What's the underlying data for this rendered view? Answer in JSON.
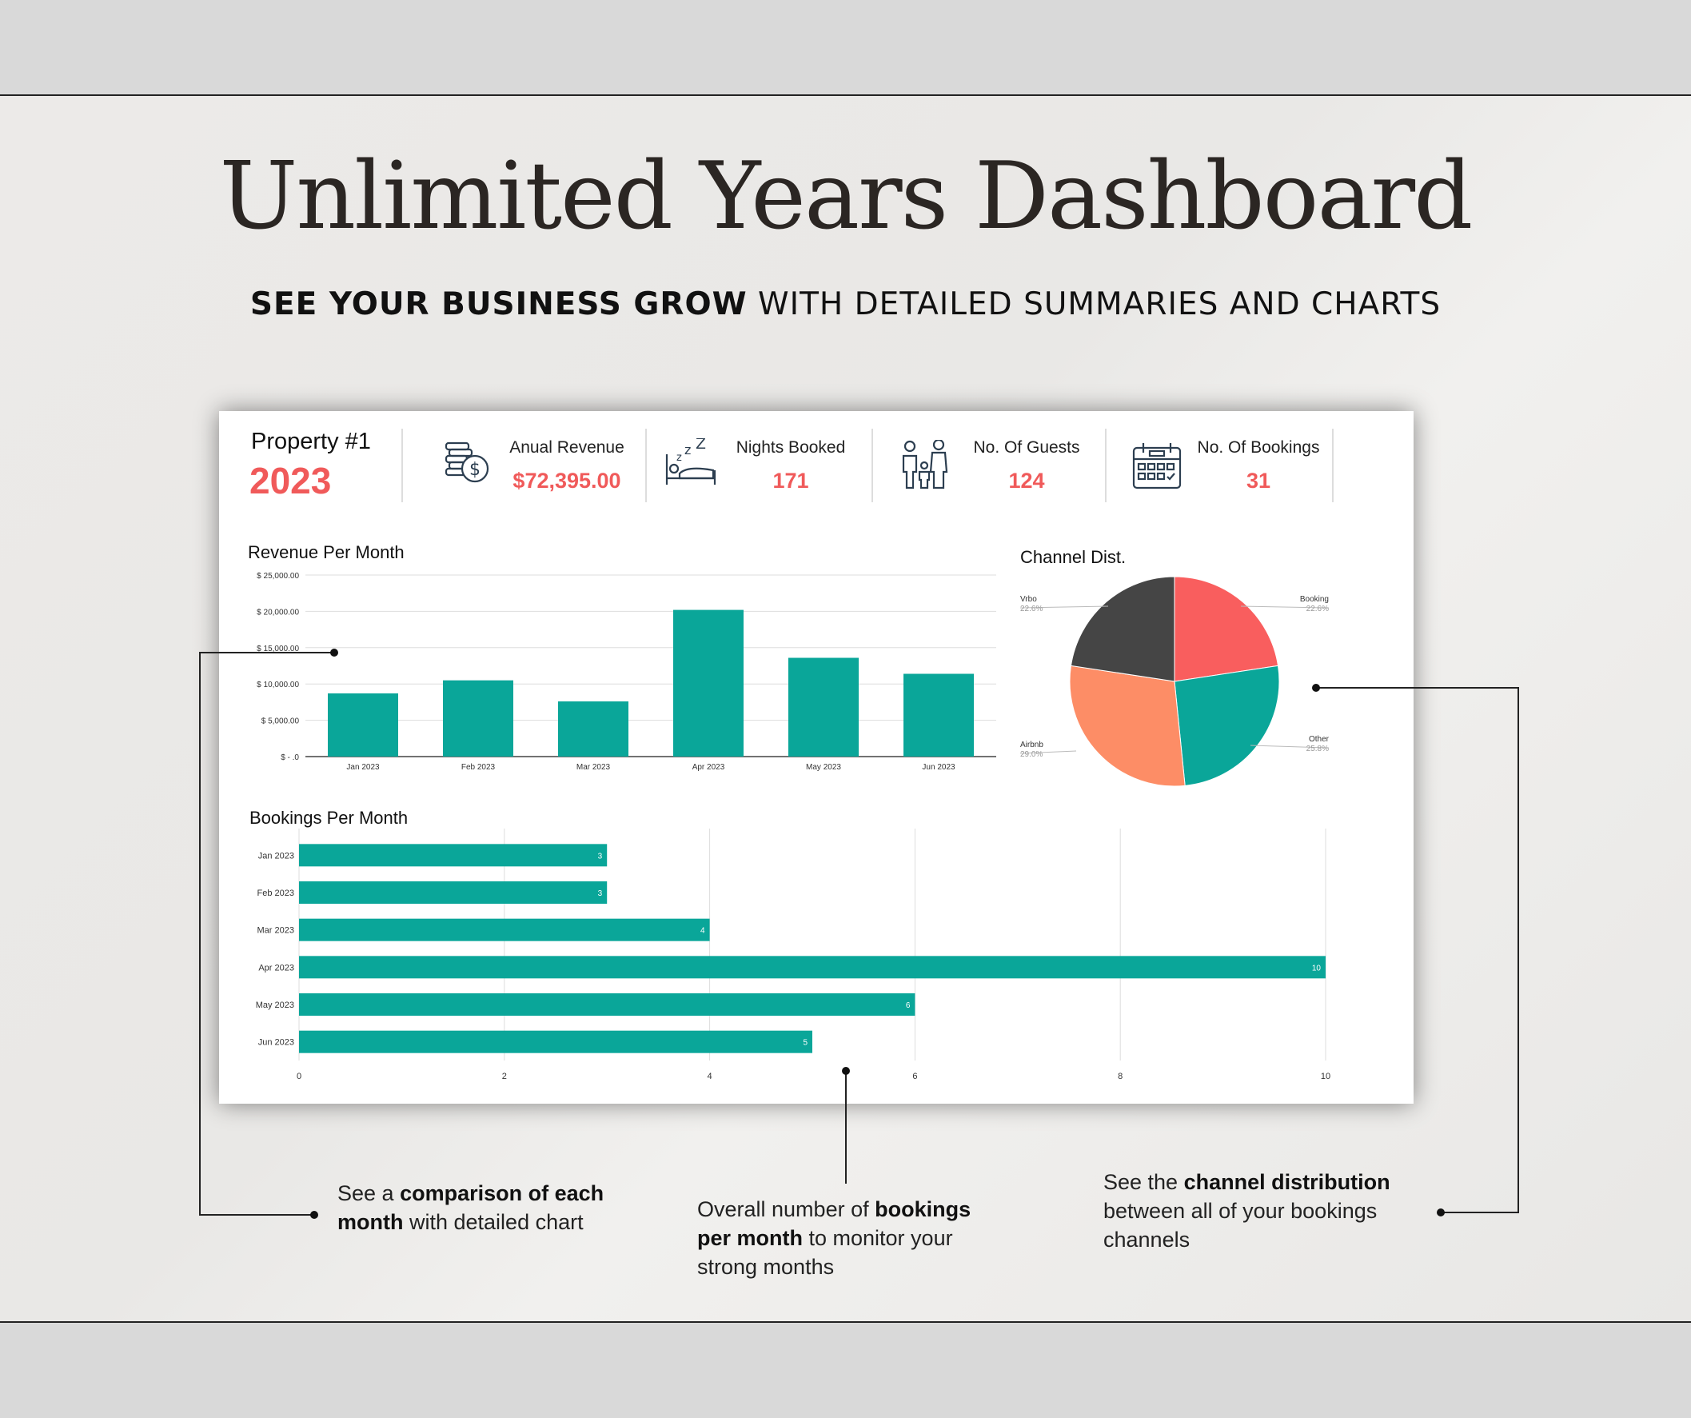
{
  "header": {
    "title": "Unlimited Years Dashboard",
    "subtitle_bold": "SEE YOUR BUSINESS GROW",
    "subtitle_rest": " WITH DETAILED SUMMARIES AND CHARTS"
  },
  "dashboard": {
    "property": "Property #1",
    "year": "2023",
    "kpis": [
      {
        "label": "Anual Revenue",
        "value": "$72,395.00",
        "icon": "money-coins-icon"
      },
      {
        "label": "Nights Booked",
        "value": "171",
        "icon": "sleeping-bed-icon"
      },
      {
        "label": "No. Of Guests",
        "value": "124",
        "icon": "family-guests-icon"
      },
      {
        "label": "No. Of Bookings",
        "value": "31",
        "icon": "calendar-icon"
      }
    ]
  },
  "chart_data": [
    {
      "type": "bar",
      "title": "Revenue Per Month",
      "categories": [
        "Jan 2023",
        "Feb 2023",
        "Mar 2023",
        "Apr 2023",
        "May 2023",
        "Jun 2023"
      ],
      "values": [
        8700,
        10500,
        7600,
        20200,
        13600,
        11400
      ],
      "ylim": [
        0,
        25000
      ],
      "yticks": [
        "$ - .0",
        "$ 5,000.00",
        "$ 10,000.00",
        "$ 15,000.00",
        "$ 20,000.00",
        "$ 25,000.00"
      ],
      "grid": true,
      "color": "#0aa699"
    },
    {
      "type": "pie",
      "title": "Channel Dist.",
      "slices": [
        {
          "name": "Booking",
          "value": 22.6,
          "label": "22.6%",
          "color": "#f95e5e"
        },
        {
          "name": "Other",
          "value": 25.8,
          "label": "25.8%",
          "color": "#0aa699"
        },
        {
          "name": "Airbnb",
          "value": 29.0,
          "label": "29.0%",
          "color": "#fd8d66"
        },
        {
          "name": "Vrbo",
          "value": 22.6,
          "label": "22.6%",
          "color": "#454545"
        }
      ]
    },
    {
      "type": "bar",
      "orientation": "horizontal",
      "title": "Bookings Per Month",
      "categories": [
        "Jan 2023",
        "Feb 2023",
        "Mar 2023",
        "Apr 2023",
        "May 2023",
        "Jun 2023"
      ],
      "values": [
        3,
        3,
        4,
        10,
        6,
        5
      ],
      "xlim": [
        0,
        10
      ],
      "xticks": [
        "0",
        "2",
        "4",
        "6",
        "8",
        "10"
      ],
      "grid": true,
      "color": "#0aa699"
    }
  ],
  "callouts": {
    "left": {
      "p1": "See a ",
      "b1": "comparison of each",
      "b2": "month",
      "p2": " with detailed chart"
    },
    "middle": {
      "p1": "Overall number of ",
      "b1": "bookings",
      "b2": "per month",
      "p2": " to monitor your",
      "p3": "strong months"
    },
    "right": {
      "p1": "See the ",
      "b1": "channel distribution",
      "p2": "between all of your bookings",
      "p3": "channels"
    }
  }
}
